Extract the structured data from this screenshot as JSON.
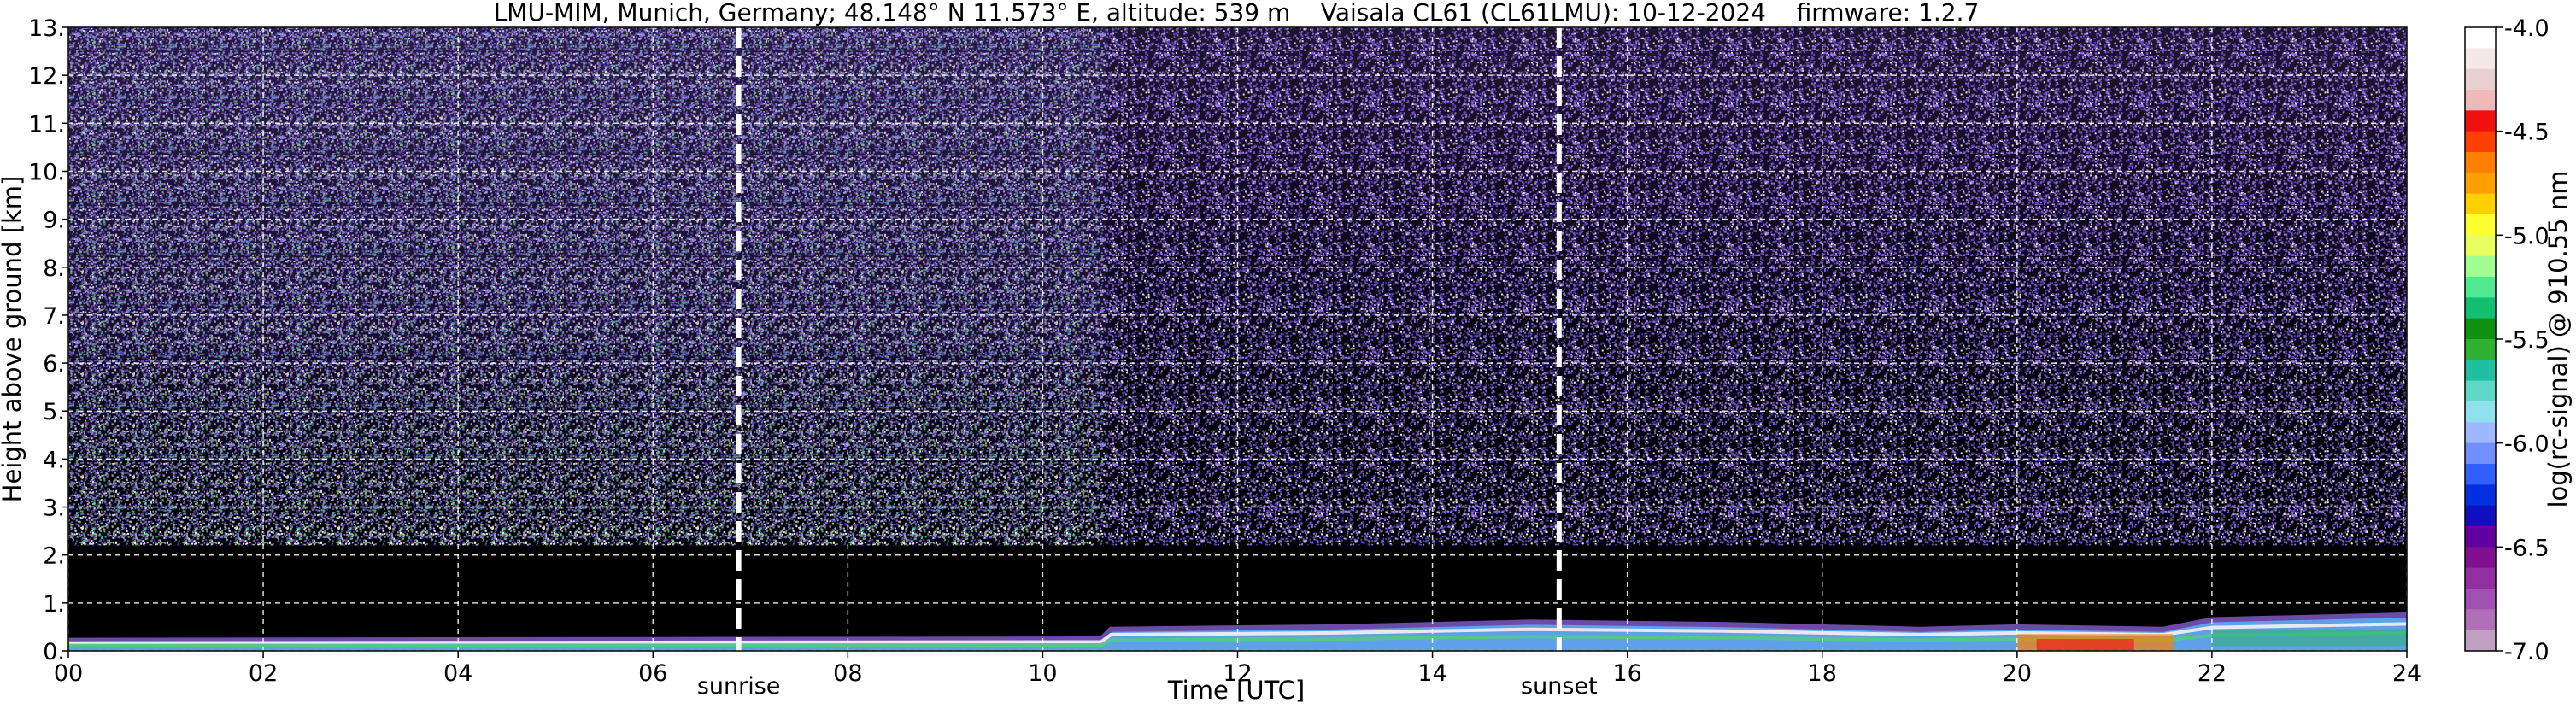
{
  "chart_data": {
    "type": "heatmap",
    "title": "LMU-MIM, Munich, Germany; 48.148° N 11.573° E, altitude: 539 m    Vaisala CL61 (CL61LMU): 10-12-2024    firmware: 1.2.7",
    "xlabel": "Time [UTC]",
    "ylabel": "Height above ground [km]",
    "xlim": [
      0,
      24
    ],
    "ylim": [
      0,
      13
    ],
    "x_tick_labels": [
      "00",
      "02",
      "04",
      "06",
      "08",
      "10",
      "12",
      "14",
      "16",
      "18",
      "20",
      "22",
      "24"
    ],
    "x_ticks": [
      0,
      2,
      4,
      6,
      8,
      10,
      12,
      14,
      16,
      18,
      20,
      22,
      24
    ],
    "y_tick_labels": [
      "0.",
      "1.",
      "2.",
      "3.",
      "4.",
      "5.",
      "6.",
      "7.",
      "8.",
      "9.",
      "10.",
      "11.",
      "12.",
      "13."
    ],
    "y_ticks": [
      0,
      1,
      2,
      3,
      4,
      5,
      6,
      7,
      8,
      9,
      10,
      11,
      12,
      13
    ],
    "grid": true,
    "annotations": [
      {
        "label": "sunrise",
        "x": 6.88
      },
      {
        "label": "sunset",
        "x": 15.3
      }
    ],
    "noise_change_time": 10.65,
    "boundary_layer_top_km": [
      {
        "t": 0.0,
        "h": 0.22
      },
      {
        "t": 10.6,
        "h": 0.25
      },
      {
        "t": 10.7,
        "h": 0.45
      },
      {
        "t": 13.0,
        "h": 0.5
      },
      {
        "t": 15.0,
        "h": 0.6
      },
      {
        "t": 17.0,
        "h": 0.55
      },
      {
        "t": 19.0,
        "h": 0.45
      },
      {
        "t": 20.0,
        "h": 0.5
      },
      {
        "t": 21.5,
        "h": 0.45
      },
      {
        "t": 22.0,
        "h": 0.65
      },
      {
        "t": 24.0,
        "h": 0.75
      }
    ],
    "colorbar": {
      "label": "log(rc-signal) @ 910.55 nm",
      "range": [
        -7.0,
        -4.0
      ],
      "tick_labels": [
        "-4.0",
        "-4.5",
        "-5.0",
        "-5.5",
        "-6.0",
        "-6.5",
        "-7.0"
      ],
      "ticks": [
        -4.0,
        -4.5,
        -5.0,
        -5.5,
        -6.0,
        -6.5,
        -7.0
      ],
      "colors_top_to_bottom": [
        "#ffffff",
        "#f4e8e8",
        "#e8d0d0",
        "#f0b8b8",
        "#f01010",
        "#ff4000",
        "#ff8000",
        "#ffa000",
        "#ffd000",
        "#ffff30",
        "#e8ff60",
        "#a0ff90",
        "#50e890",
        "#10c070",
        "#109010",
        "#30b030",
        "#20c0a0",
        "#60d8c8",
        "#90e0f0",
        "#a0b8ff",
        "#7090ff",
        "#3060ff",
        "#0030e0",
        "#1010c0",
        "#6000a0",
        "#801090",
        "#9030a0",
        "#a050b0",
        "#b070b8",
        "#c0a0c0"
      ]
    }
  }
}
